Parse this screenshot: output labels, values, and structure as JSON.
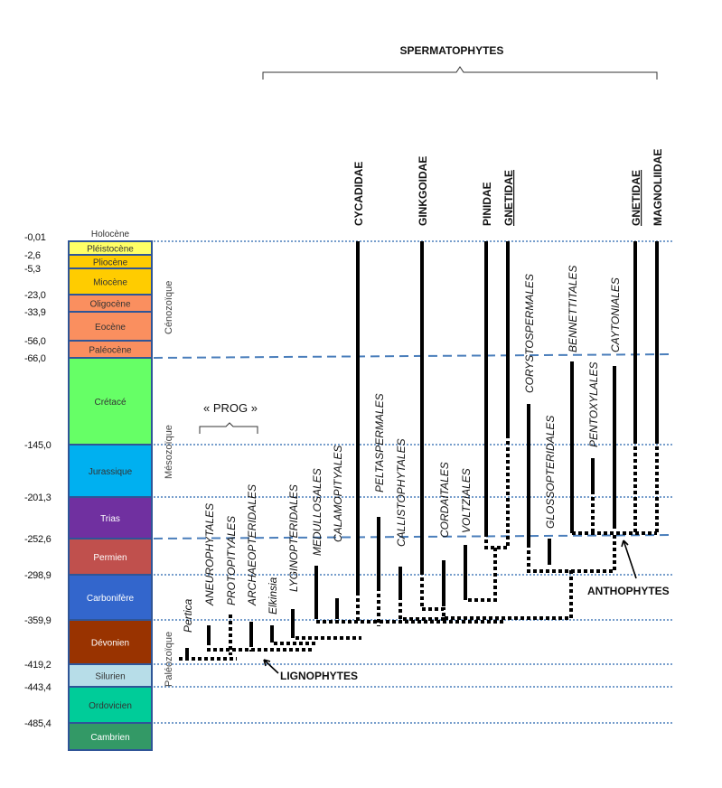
{
  "holocene": {
    "label": "Holocène",
    "age": "-0,01"
  },
  "periods": [
    {
      "name": "Pléistocène",
      "age": "-2,6",
      "color": "#ffff66",
      "text": "#333"
    },
    {
      "name": "Pliocène",
      "age": "-5,3",
      "color": "#ffcc00",
      "text": "#333"
    },
    {
      "name": "Miocène",
      "age": "-23,0",
      "color": "#ffcc00",
      "text": "#333"
    },
    {
      "name": "Oligocène",
      "age": "-33,9",
      "color": "#fa8f5f",
      "text": "#333"
    },
    {
      "name": "Eocène",
      "age": "-56,0",
      "color": "#fa8f5f",
      "text": "#333"
    },
    {
      "name": "Paléocène",
      "age": "-66,0",
      "color": "#fa8f5f",
      "text": "#333"
    },
    {
      "name": "Crétacé",
      "age": "-145,0",
      "color": "#66ff66",
      "text": "#333"
    },
    {
      "name": "Jurassique",
      "age": "-201,3",
      "color": "#00b0f0",
      "text": "#333"
    },
    {
      "name": "Trias",
      "age": "-252,6",
      "color": "#7030a0",
      "text": "#fff"
    },
    {
      "name": "Permien",
      "age": "-298,9",
      "color": "#c0504d",
      "text": "#fff"
    },
    {
      "name": "Carbonifère",
      "age": "-359,9",
      "color": "#3366cc",
      "text": "#fff"
    },
    {
      "name": "Dévonien",
      "age": "-419,2",
      "color": "#993300",
      "text": "#fff"
    },
    {
      "name": "Silurien",
      "age": "-443,4",
      "color": "#b7dde8",
      "text": "#333"
    },
    {
      "name": "Ordovicien",
      "age": "-485,4",
      "color": "#00cc99",
      "text": "#333"
    },
    {
      "name": "Cambrien",
      "age": "",
      "color": "#339966",
      "text": "#fff"
    }
  ],
  "eras": [
    "Cénozoïque",
    "Mésozoïque",
    "Paléozoïque"
  ],
  "groups": {
    "spermatophytes": "SPERMATOPHYTES",
    "prog": "« PROG »",
    "lignophytes": "LIGNOPHYTES",
    "anthophytes": "ANTHOPHYTES"
  },
  "lineages": [
    {
      "label": "Pertica",
      "style": "italic"
    },
    {
      "label": "ANEUROPHYTALES",
      "style": "italic"
    },
    {
      "label": "PROTOPITYALES",
      "style": "italic"
    },
    {
      "label": "ARCHAEOPTERIDALES",
      "style": "italic"
    },
    {
      "label": "Elkinsia",
      "style": "italic"
    },
    {
      "label": "LYGINOPTERIDALES",
      "style": "italic"
    },
    {
      "label": "MEDULLOSALES",
      "style": "italic"
    },
    {
      "label": "CALAMOPITYALES",
      "style": "italic"
    },
    {
      "label": "CYCADIDAE",
      "style": "bold"
    },
    {
      "label": "PELTASPERMALES",
      "style": "italic"
    },
    {
      "label": "CALLISTOPHYTALES",
      "style": "italic"
    },
    {
      "label": "GINKGOIDAE",
      "style": "bold"
    },
    {
      "label": "CORDAITALES",
      "style": "italic"
    },
    {
      "label": "VOLTZIALES",
      "style": "italic"
    },
    {
      "label": "PINIDAE",
      "style": "bold"
    },
    {
      "label": "GNETIDAE",
      "style": "bold-underline"
    },
    {
      "label": "CORYSTOSPERMALES",
      "style": "italic"
    },
    {
      "label": "GLOSSOPTERIDALES",
      "style": "italic"
    },
    {
      "label": "BENNETTITALES",
      "style": "italic"
    },
    {
      "label": "PENTOXYLALES",
      "style": "italic"
    },
    {
      "label": "CAYTONIALES",
      "style": "italic"
    },
    {
      "label": "GNETIDAE",
      "style": "bold-underline"
    },
    {
      "label": "MAGNOLIIDAE",
      "style": "bold"
    }
  ],
  "colors": {
    "border": "#2f5597",
    "guide": "#4a7ebb",
    "tree": "#000000"
  }
}
